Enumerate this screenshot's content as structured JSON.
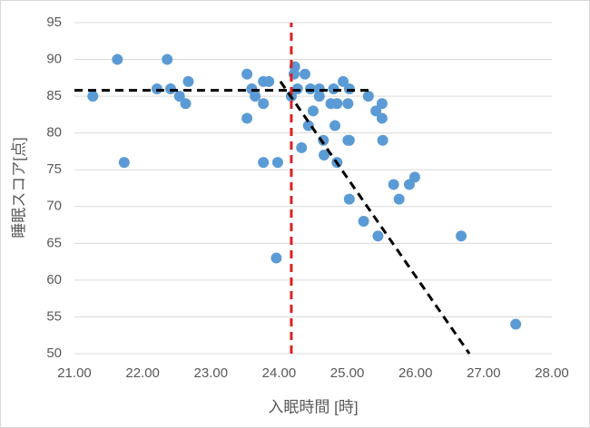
{
  "chart_data": {
    "type": "scatter",
    "x_label": "入眠時間 [時]",
    "y_label": "睡眠スコア[点]",
    "xlim": [
      21,
      28
    ],
    "ylim": [
      50,
      95
    ],
    "xticks": [
      {
        "value": 21,
        "label": "21.00"
      },
      {
        "value": 22,
        "label": "22.00"
      },
      {
        "value": 23,
        "label": "23.00"
      },
      {
        "value": 24,
        "label": "24.00"
      },
      {
        "value": 25,
        "label": "25.00"
      },
      {
        "value": 26,
        "label": "26.00"
      },
      {
        "value": 27,
        "label": "27.00"
      },
      {
        "value": 28,
        "label": "28.00"
      }
    ],
    "yticks": [
      50,
      55,
      60,
      65,
      70,
      75,
      80,
      85,
      90,
      95
    ],
    "grid": true,
    "series": [
      {
        "color": "#5b9bd5",
        "x": [
          21.27,
          21.63,
          21.73,
          22.21,
          22.36,
          22.41,
          22.54,
          22.63,
          22.67,
          23.53,
          23.53,
          23.6,
          23.65,
          23.77,
          23.77,
          23.85,
          23.77,
          23.98,
          23.96,
          24.18,
          24.23,
          24.22,
          24.27,
          24.38,
          24.33,
          24.43,
          24.46,
          24.5,
          24.59,
          24.59,
          24.65,
          24.66,
          24.76,
          24.8,
          24.82,
          24.85,
          24.85,
          24.94,
          25.01,
          25.03,
          25.01,
          25.03,
          25.03,
          25.24,
          25.31,
          25.42,
          25.45,
          25.51,
          25.51,
          25.52,
          25.68,
          25.76,
          25.91,
          25.99,
          26.67,
          27.47
        ],
        "values": [
          85,
          90,
          76,
          86,
          90,
          86,
          85,
          84,
          87,
          88,
          82,
          86,
          85,
          84,
          87,
          87,
          76,
          76,
          63,
          85,
          89,
          88,
          86,
          88,
          78,
          81,
          86,
          83,
          86,
          85,
          79,
          77,
          84,
          86,
          81,
          76,
          84,
          87,
          84,
          86,
          79,
          79,
          71,
          68,
          85,
          83,
          66,
          84,
          82,
          79,
          73,
          71,
          73,
          74,
          66,
          54
        ]
      }
    ],
    "lines": [
      {
        "color": "#000000",
        "x": [
          21,
          25.34
        ],
        "values": [
          85.8,
          85.8
        ]
      },
      {
        "color": "#e02020",
        "x": [
          24.18,
          24.18
        ],
        "values": [
          50,
          95
        ]
      },
      {
        "color": "#000000",
        "x": [
          24.02,
          26.79
        ],
        "values": [
          87,
          50
        ]
      }
    ]
  }
}
